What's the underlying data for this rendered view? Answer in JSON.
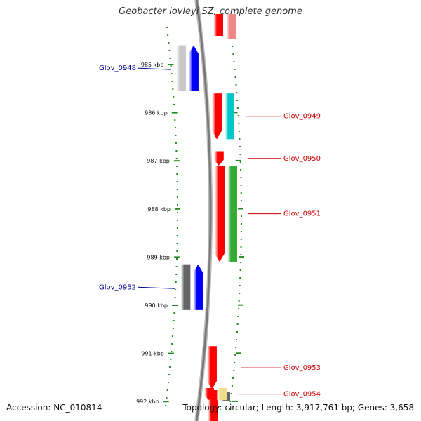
{
  "title": "Geobacter lovleyi SZ, complete genome",
  "footer": {
    "accession": "Accession: NC_010814",
    "summary": "Topology: circular; Length: 3,917,761 bp; Genes: 3,658"
  },
  "scale": {
    "unit": "kbp",
    "ticks": [
      {
        "kbp": 985,
        "label": "985 kbp"
      },
      {
        "kbp": 986,
        "label": "986 kbp"
      },
      {
        "kbp": 987,
        "label": "987 kbp"
      },
      {
        "kbp": 988,
        "label": "988 kbp"
      },
      {
        "kbp": 989,
        "label": "989 kbp"
      },
      {
        "kbp": 990,
        "label": "990 kbp"
      },
      {
        "kbp": 991,
        "label": "991 kbp"
      },
      {
        "kbp": 992,
        "label": "992 kbp"
      }
    ]
  },
  "genes": [
    {
      "name": "Glov_0948",
      "strand": "reverse",
      "start_kbp": 984.6,
      "end_kbp": 985.55,
      "feature_color": "#c8c8c8",
      "cds_color": "#0000ff",
      "label_color": "#00008b"
    },
    {
      "name": "Glov_0949",
      "strand": "forward",
      "start_kbp": 985.6,
      "end_kbp": 986.55,
      "feature_color": "#ff0000",
      "cds_color": "#00c8c8",
      "label_color": "#cc0000"
    },
    {
      "name": "Glov_0950",
      "strand": "forward",
      "start_kbp": 986.8,
      "end_kbp": 987.1,
      "feature_color": "#ff0000",
      "cds_color": null,
      "label_color": "#cc0000"
    },
    {
      "name": "Glov_0951",
      "strand": "forward",
      "start_kbp": 987.1,
      "end_kbp": 989.1,
      "feature_color": "#ff0000",
      "cds_color": "#33aa33",
      "label_color": "#cc0000"
    },
    {
      "name": "Glov_0952",
      "strand": "reverse",
      "start_kbp": 989.15,
      "end_kbp": 990.1,
      "feature_color": "#666666",
      "cds_color": "#0000ff",
      "label_color": "#00008b"
    },
    {
      "name": "Glov_0953",
      "strand": "forward",
      "start_kbp": 990.85,
      "end_kbp": 991.75,
      "feature_color": "#ff0000",
      "cds_color": null,
      "label_color": "#cc0000"
    },
    {
      "name": "Glov_0954",
      "strand": "forward",
      "start_kbp": 991.72,
      "end_kbp": 991.97,
      "feature_color": "#ff0000",
      "cds_color": "#eedd88",
      "label_color": "#cc0000"
    }
  ]
}
